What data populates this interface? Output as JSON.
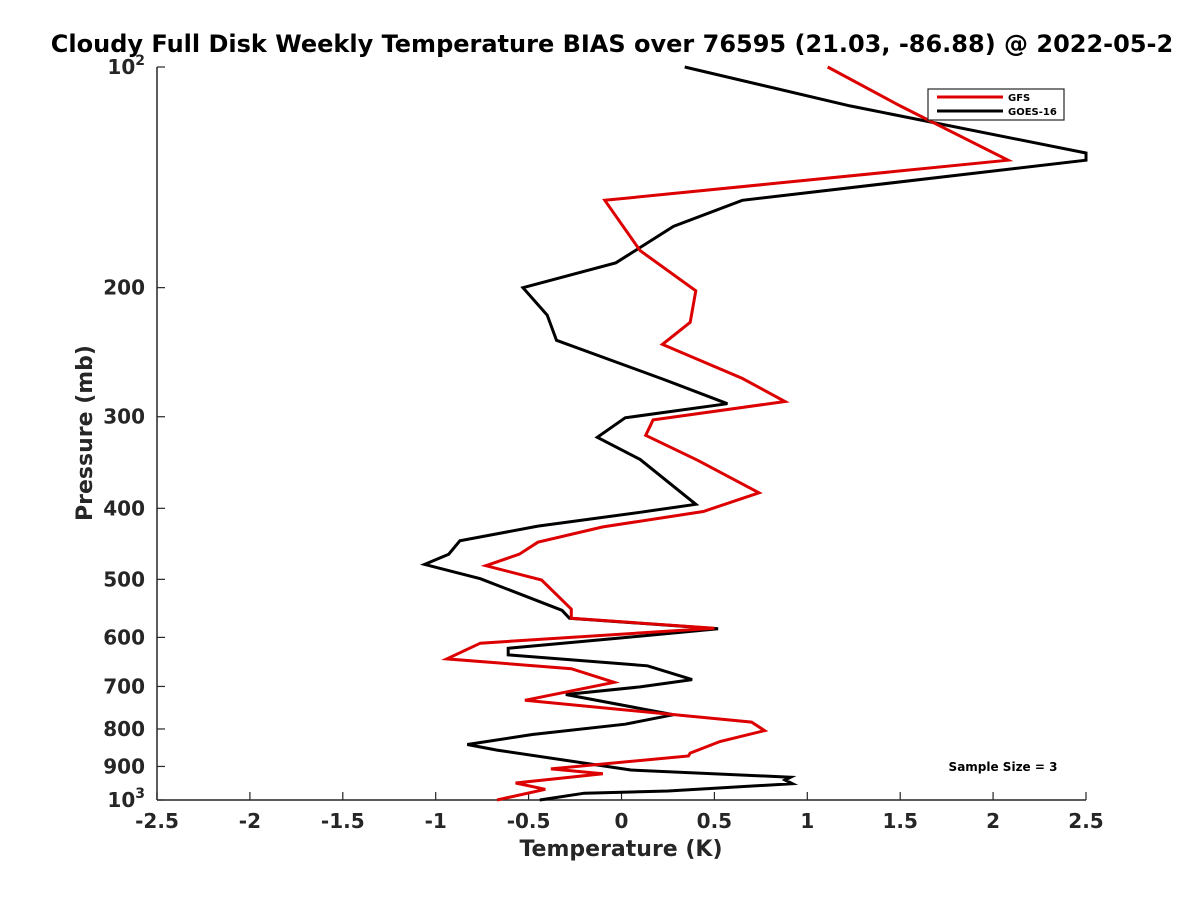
{
  "chart_data": {
    "type": "line",
    "title": "Cloudy Full Disk Weekly Temperature BIAS over 76595 (21.03, -86.88) @ 2022-05-2",
    "xlabel": "Temperature (K)",
    "ylabel": "Pressure (mb)",
    "xlim": [
      -2.5,
      2.5
    ],
    "ylim": [
      100,
      1000
    ],
    "y_scale": "log",
    "y_reversed": true,
    "x_ticks": [
      "-2.5",
      "-2",
      "-1.5",
      "-1",
      "-0.5",
      "0",
      "0.5",
      "1",
      "1.5",
      "2",
      "2.5"
    ],
    "y_ticks": [
      {
        "value": 100,
        "label": "10",
        "sup": "2"
      },
      {
        "value": 200,
        "label": "200",
        "sup": ""
      },
      {
        "value": 300,
        "label": "300",
        "sup": ""
      },
      {
        "value": 400,
        "label": "400",
        "sup": ""
      },
      {
        "value": 500,
        "label": "500",
        "sup": ""
      },
      {
        "value": 600,
        "label": "600",
        "sup": ""
      },
      {
        "value": 700,
        "label": "700",
        "sup": ""
      },
      {
        "value": 800,
        "label": "800",
        "sup": ""
      },
      {
        "value": 900,
        "label": "900",
        "sup": ""
      },
      {
        "value": 1000,
        "label": "10",
        "sup": "3"
      }
    ],
    "legend": {
      "position": "top-right"
    },
    "annotation": "Sample Size = 3",
    "series": [
      {
        "name": "GFS",
        "color": "#dd0000",
        "points": [
          {
            "x": 1.11,
            "y": 100
          },
          {
            "x": 1.5,
            "y": 113
          },
          {
            "x": 2.08,
            "y": 134
          },
          {
            "x": -0.09,
            "y": 152
          },
          {
            "x": 0.1,
            "y": 178
          },
          {
            "x": 0.4,
            "y": 202
          },
          {
            "x": 0.37,
            "y": 223
          },
          {
            "x": 0.22,
            "y": 239
          },
          {
            "x": 0.65,
            "y": 266
          },
          {
            "x": 0.88,
            "y": 286
          },
          {
            "x": 0.17,
            "y": 303
          },
          {
            "x": 0.13,
            "y": 318
          },
          {
            "x": 0.41,
            "y": 344
          },
          {
            "x": 0.74,
            "y": 381
          },
          {
            "x": 0.44,
            "y": 404
          },
          {
            "x": -0.1,
            "y": 424
          },
          {
            "x": -0.45,
            "y": 445
          },
          {
            "x": -0.55,
            "y": 462
          },
          {
            "x": -0.73,
            "y": 479
          },
          {
            "x": -0.43,
            "y": 501
          },
          {
            "x": -0.27,
            "y": 549
          },
          {
            "x": -0.27,
            "y": 565
          },
          {
            "x": 0.5,
            "y": 583
          },
          {
            "x": -0.76,
            "y": 611
          },
          {
            "x": -0.94,
            "y": 642
          },
          {
            "x": -0.27,
            "y": 662
          },
          {
            "x": -0.04,
            "y": 691
          },
          {
            "x": -0.52,
            "y": 731
          },
          {
            "x": 0.7,
            "y": 783
          },
          {
            "x": 0.77,
            "y": 804
          },
          {
            "x": 0.53,
            "y": 832
          },
          {
            "x": 0.37,
            "y": 863
          },
          {
            "x": 0.36,
            "y": 871
          },
          {
            "x": -0.38,
            "y": 907
          },
          {
            "x": -0.1,
            "y": 921
          },
          {
            "x": -0.57,
            "y": 948
          },
          {
            "x": -0.41,
            "y": 967
          },
          {
            "x": -0.67,
            "y": 1000
          }
        ]
      },
      {
        "name": "GOES-16",
        "color": "#000000",
        "points": [
          {
            "x": 0.34,
            "y": 100
          },
          {
            "x": 1.23,
            "y": 113
          },
          {
            "x": 2.5,
            "y": 131
          },
          {
            "x": 2.5,
            "y": 134
          },
          {
            "x": 0.65,
            "y": 152
          },
          {
            "x": 0.28,
            "y": 165
          },
          {
            "x": -0.03,
            "y": 185
          },
          {
            "x": -0.53,
            "y": 200
          },
          {
            "x": -0.4,
            "y": 218
          },
          {
            "x": -0.35,
            "y": 236
          },
          {
            "x": 0.23,
            "y": 267
          },
          {
            "x": 0.57,
            "y": 288
          },
          {
            "x": 0.02,
            "y": 301
          },
          {
            "x": -0.13,
            "y": 320
          },
          {
            "x": 0.1,
            "y": 343
          },
          {
            "x": 0.4,
            "y": 395
          },
          {
            "x": 0.1,
            "y": 405
          },
          {
            "x": -0.45,
            "y": 423
          },
          {
            "x": -0.87,
            "y": 443
          },
          {
            "x": -0.93,
            "y": 462
          },
          {
            "x": -1.06,
            "y": 477
          },
          {
            "x": -0.76,
            "y": 499
          },
          {
            "x": -0.32,
            "y": 551
          },
          {
            "x": -0.28,
            "y": 565
          },
          {
            "x": 0.52,
            "y": 584
          },
          {
            "x": 0.0,
            "y": 601
          },
          {
            "x": -0.61,
            "y": 621
          },
          {
            "x": -0.61,
            "y": 634
          },
          {
            "x": 0.14,
            "y": 656
          },
          {
            "x": 0.38,
            "y": 685
          },
          {
            "x": 0.1,
            "y": 701
          },
          {
            "x": -0.3,
            "y": 718
          },
          {
            "x": 0.28,
            "y": 765
          },
          {
            "x": 0.02,
            "y": 788
          },
          {
            "x": -0.48,
            "y": 814
          },
          {
            "x": -0.83,
            "y": 840
          },
          {
            "x": -0.67,
            "y": 855
          },
          {
            "x": 0.05,
            "y": 910
          },
          {
            "x": 0.91,
            "y": 931
          },
          {
            "x": 0.88,
            "y": 939
          },
          {
            "x": 0.92,
            "y": 950
          },
          {
            "x": 0.25,
            "y": 972
          },
          {
            "x": -0.2,
            "y": 979
          },
          {
            "x": -0.44,
            "y": 1000
          }
        ]
      }
    ]
  }
}
